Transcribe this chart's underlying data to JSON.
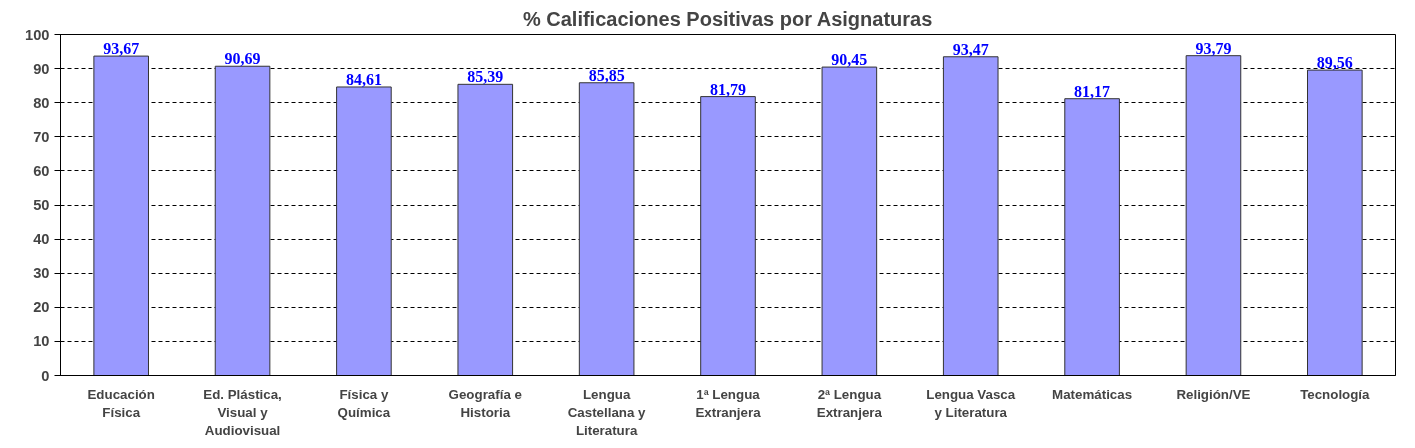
{
  "chart_data": {
    "type": "bar",
    "title": "% Calificaciones Positivas por Asignaturas",
    "categories": [
      "Educación\nFísica",
      "Ed. Plástica,\nVisual y\nAudiovisual",
      "Física y\nQuímica",
      "Geografía e\nHistoria",
      "Lengua\nCastellana y\nLiteratura",
      "1ª Lengua\nExtranjera",
      "2ª Lengua\nExtranjera",
      "Lengua Vasca\ny Literatura",
      "Matemáticas",
      "Religión/VE",
      "Tecnología"
    ],
    "values": [
      93.67,
      90.69,
      84.61,
      85.39,
      85.85,
      81.79,
      90.45,
      93.47,
      81.17,
      93.79,
      89.56
    ],
    "value_labels": [
      "93,67",
      "90,69",
      "84,61",
      "85,39",
      "85,85",
      "81,79",
      "90,45",
      "93,47",
      "81,17",
      "93,79",
      "89,56"
    ],
    "color": "#9999ff",
    "ylim": [
      0,
      100
    ],
    "yticks": [
      0,
      10,
      20,
      30,
      40,
      50,
      60,
      70,
      80,
      90,
      100
    ],
    "grid": "y"
  }
}
